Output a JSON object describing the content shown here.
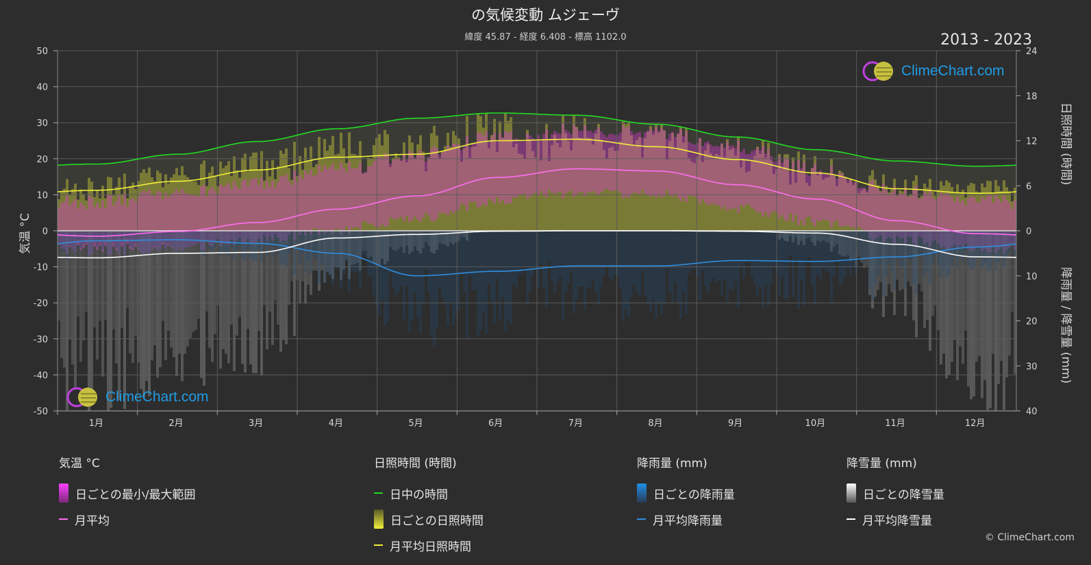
{
  "header": {
    "title": "の気候変動 ムジェーヴ",
    "subtitle": "緯度 45.87 - 経度 6.408 - 標高 1102.0",
    "period": "2013 - 2023"
  },
  "logo": {
    "text": "ClimeChart.com"
  },
  "copyright": "© ClimeChart.com",
  "colors": {
    "background": "#2d2d2d",
    "temp_range": "#e23bd9",
    "temp_mean": "#ff6ef2",
    "daylight": "#22dd22",
    "sunshine_band": "#c8c83a",
    "sunshine_mean": "#f0f03a",
    "rain": "#1d7fd0",
    "rain_mean": "#2f8fe0",
    "snow": "#d0d0d0",
    "snow_mean": "#ffffff"
  },
  "legend": {
    "temperature": {
      "title": "気温 °C",
      "items": [
        "日ごとの最小/最大範囲",
        "月平均"
      ]
    },
    "sunshine": {
      "title": "日照時間 (時間)",
      "items": [
        "日中の時間",
        "日ごとの日照時間",
        "月平均日照時間"
      ]
    },
    "rain": {
      "title": "降雨量 (mm)",
      "items": [
        "日ごとの降雨量",
        "月平均降雨量"
      ]
    },
    "snow": {
      "title": "降雪量 (mm)",
      "items": [
        "日ごとの降雪量",
        "月平均降雪量"
      ]
    }
  },
  "chart_data": {
    "type": "area",
    "categories": [
      "1月",
      "2月",
      "3月",
      "4月",
      "5月",
      "6月",
      "7月",
      "8月",
      "9月",
      "10月",
      "11月",
      "12月"
    ],
    "y_left": {
      "label": "気温 °C",
      "ylim": [
        -50,
        50
      ],
      "ticks": [
        50,
        40,
        30,
        20,
        10,
        0,
        -10,
        -20,
        -30,
        -40,
        -50
      ]
    },
    "y_right_top": {
      "label": "日照時間 (時間)",
      "ylim": [
        0,
        24
      ],
      "ticks": [
        24,
        18,
        12,
        6,
        0
      ]
    },
    "y_right_bottom": {
      "label": "降雨量 / 降雪量 (mm)",
      "ylim": [
        0,
        40
      ],
      "ticks": [
        0,
        10,
        20,
        30,
        40
      ]
    },
    "grid": true,
    "series": [
      {
        "name": "日中の時間",
        "axis": "hours",
        "values": [
          8.9,
          10.2,
          11.9,
          13.6,
          15.0,
          15.7,
          15.4,
          14.2,
          12.5,
          10.8,
          9.3,
          8.6
        ]
      },
      {
        "name": "月平均日照時間",
        "axis": "hours",
        "values": [
          5.4,
          6.6,
          8.1,
          9.8,
          10.2,
          12.0,
          12.2,
          11.2,
          9.5,
          7.7,
          5.6,
          5.0
        ]
      },
      {
        "name": "月平均",
        "axis": "temp",
        "values": [
          -1.5,
          -0.2,
          2.3,
          6.0,
          9.7,
          14.8,
          17.2,
          16.6,
          12.8,
          8.8,
          2.8,
          -0.8
        ]
      },
      {
        "name": "月平均降雨量",
        "axis": "mm",
        "values": [
          2.2,
          2.0,
          2.8,
          5.0,
          10.0,
          9.0,
          7.8,
          7.8,
          6.6,
          6.8,
          5.8,
          3.6
        ]
      },
      {
        "name": "月平均降雪量",
        "axis": "mm",
        "values": [
          6.0,
          5.0,
          4.8,
          1.6,
          0.8,
          0.1,
          0.0,
          0.0,
          0.1,
          0.5,
          3.0,
          5.8
        ]
      }
    ],
    "daily_temp_range": {
      "min": [
        -4,
        -3,
        -1,
        2,
        5,
        10,
        12,
        12,
        8,
        4,
        -1,
        -3
      ],
      "max": [
        8,
        10,
        13,
        17,
        21,
        26,
        28,
        27,
        23,
        17,
        11,
        8
      ]
    }
  }
}
